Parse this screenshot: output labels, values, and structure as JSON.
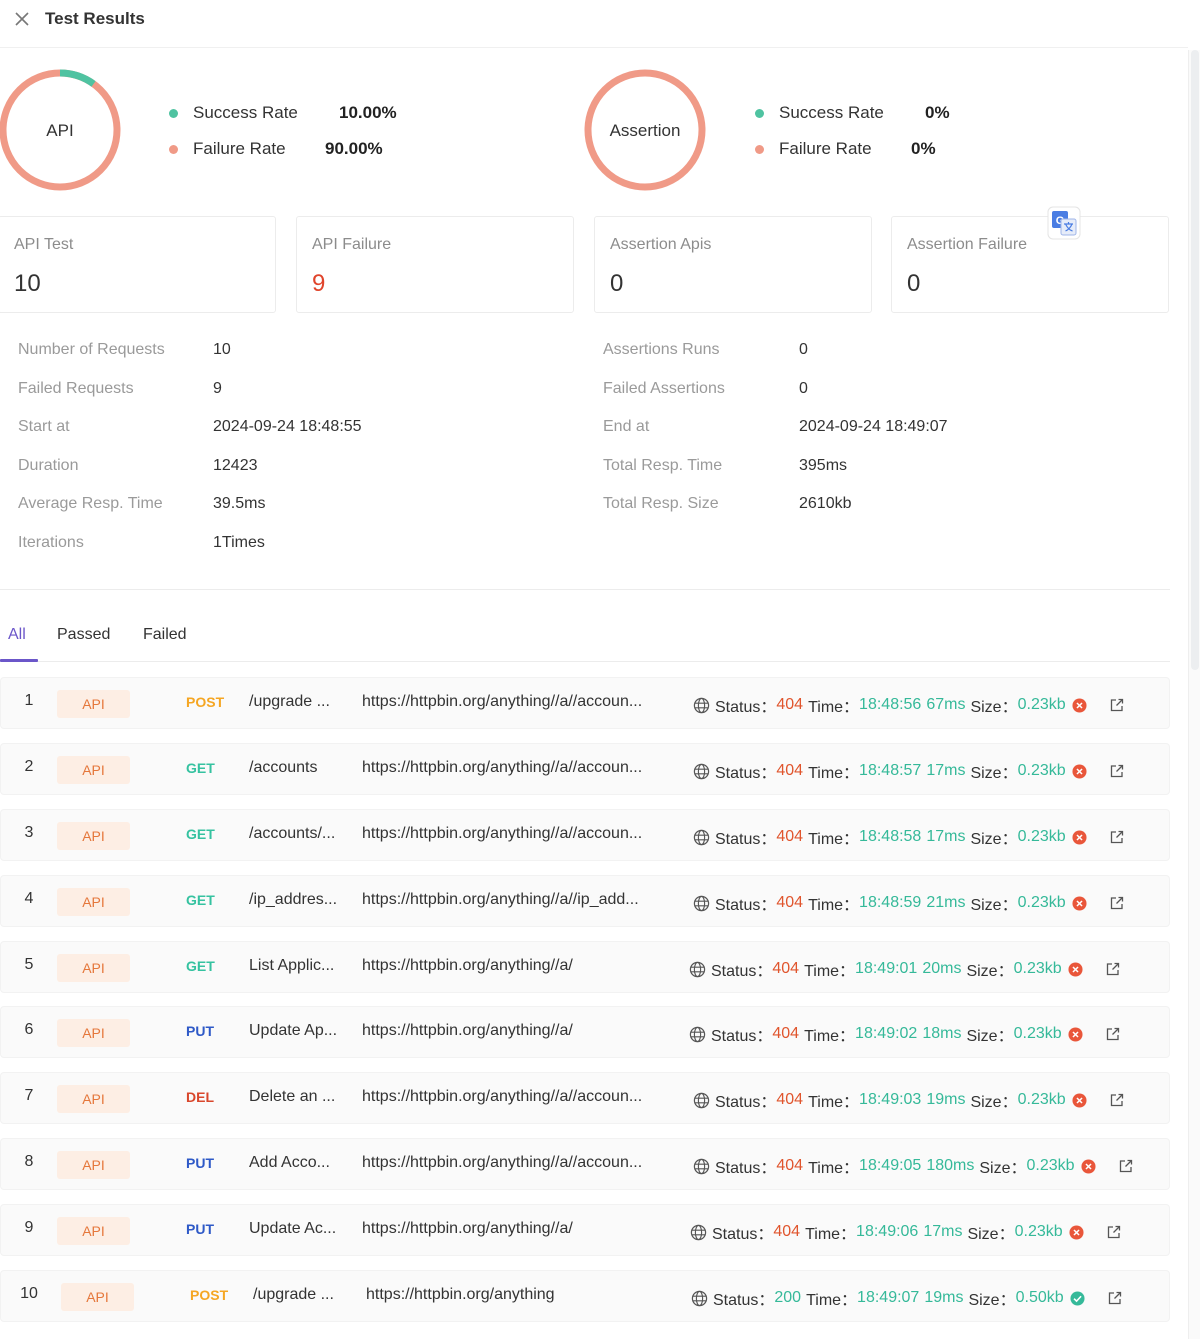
{
  "header": {
    "title": "Test Results"
  },
  "colors": {
    "success": "#4fc3a1",
    "failure": "#f09a87",
    "tab_accent": "#6b56c9",
    "error": "#e0552d"
  },
  "summary": {
    "api": {
      "label": "API",
      "success_label": "Success Rate",
      "success_value": "10.00%",
      "failure_label": "Failure Rate",
      "failure_value": "90.00%",
      "success_fraction": 0.1
    },
    "assertion": {
      "label": "Assertion",
      "success_label": "Success Rate",
      "success_value": "0%",
      "failure_label": "Failure Rate",
      "failure_value": "0%",
      "success_fraction": 0
    }
  },
  "stats": [
    {
      "label": "API Test",
      "value": "10"
    },
    {
      "label": "API Failure",
      "value": "9"
    },
    {
      "label": "Assertion Apis",
      "value": "0"
    },
    {
      "label": "Assertion Failure",
      "value": "0"
    }
  ],
  "info_left": [
    {
      "label": "Number of Requests",
      "value": "10"
    },
    {
      "label": "Failed Requests",
      "value": "9"
    },
    {
      "label": "Start at",
      "value": "2024-09-24 18:48:55"
    },
    {
      "label": "Duration",
      "value": "12423"
    },
    {
      "label": "Average Resp. Time",
      "value": "39.5ms"
    },
    {
      "label": "Iterations",
      "value": "1Times"
    }
  ],
  "info_right": [
    {
      "label": "Assertions Runs",
      "value": "0"
    },
    {
      "label": "Failed Assertions",
      "value": "0"
    },
    {
      "label": "End at",
      "value": "2024-09-24 18:49:07"
    },
    {
      "label": "Total Resp. Time",
      "value": "395ms"
    },
    {
      "label": "Total Resp. Size",
      "value": "2610kb"
    }
  ],
  "tabs": {
    "all": "All",
    "passed": "Passed",
    "failed": "Failed"
  },
  "labels": {
    "status": "Status：",
    "time": "Time：",
    "size": "Size："
  },
  "rows": [
    {
      "index": "1",
      "badge": "API",
      "method": "POST",
      "name": "/upgrade ...",
      "url": "https://httpbin.org/anything//a//accoun...",
      "status": "404",
      "time": "18:48:56",
      "duration": "67ms",
      "size": "0.23kb",
      "result": "fail"
    },
    {
      "index": "2",
      "badge": "API",
      "method": "GET",
      "name": "/accounts",
      "url": "https://httpbin.org/anything//a//accoun...",
      "status": "404",
      "time": "18:48:57",
      "duration": "17ms",
      "size": "0.23kb",
      "result": "fail"
    },
    {
      "index": "3",
      "badge": "API",
      "method": "GET",
      "name": "/accounts/...",
      "url": "https://httpbin.org/anything//a//accoun...",
      "status": "404",
      "time": "18:48:58",
      "duration": "17ms",
      "size": "0.23kb",
      "result": "fail"
    },
    {
      "index": "4",
      "badge": "API",
      "method": "GET",
      "name": "/ip_addres...",
      "url": "https://httpbin.org/anything//a//ip_add...",
      "status": "404",
      "time": "18:48:59",
      "duration": "21ms",
      "size": "0.23kb",
      "result": "fail"
    },
    {
      "index": "5",
      "badge": "API",
      "method": "GET",
      "name": "List Applic...",
      "url": "https://httpbin.org/anything//a/",
      "status": "404",
      "time": "18:49:01",
      "duration": "20ms",
      "size": "0.23kb",
      "result": "fail"
    },
    {
      "index": "6",
      "badge": "API",
      "method": "PUT",
      "name": "Update Ap...",
      "url": "https://httpbin.org/anything//a/",
      "status": "404",
      "time": "18:49:02",
      "duration": "18ms",
      "size": "0.23kb",
      "result": "fail"
    },
    {
      "index": "7",
      "badge": "API",
      "method": "DEL",
      "name": "Delete an ...",
      "url": "https://httpbin.org/anything//a//accoun...",
      "status": "404",
      "time": "18:49:03",
      "duration": "19ms",
      "size": "0.23kb",
      "result": "fail"
    },
    {
      "index": "8",
      "badge": "API",
      "method": "PUT",
      "name": "Add Acco...",
      "url": "https://httpbin.org/anything//a//accoun...",
      "status": "404",
      "time": "18:49:05",
      "duration": "180ms",
      "size": "0.23kb",
      "result": "fail"
    },
    {
      "index": "9",
      "badge": "API",
      "method": "PUT",
      "name": "Update Ac...",
      "url": "https://httpbin.org/anything//a/",
      "status": "404",
      "time": "18:49:06",
      "duration": "17ms",
      "size": "0.23kb",
      "result": "fail"
    },
    {
      "index": "10",
      "badge": "API",
      "method": "POST",
      "name": "/upgrade ...",
      "url": "https://httpbin.org/anything",
      "status": "200",
      "time": "18:49:07",
      "duration": "19ms",
      "size": "0.50kb",
      "result": "pass"
    }
  ]
}
